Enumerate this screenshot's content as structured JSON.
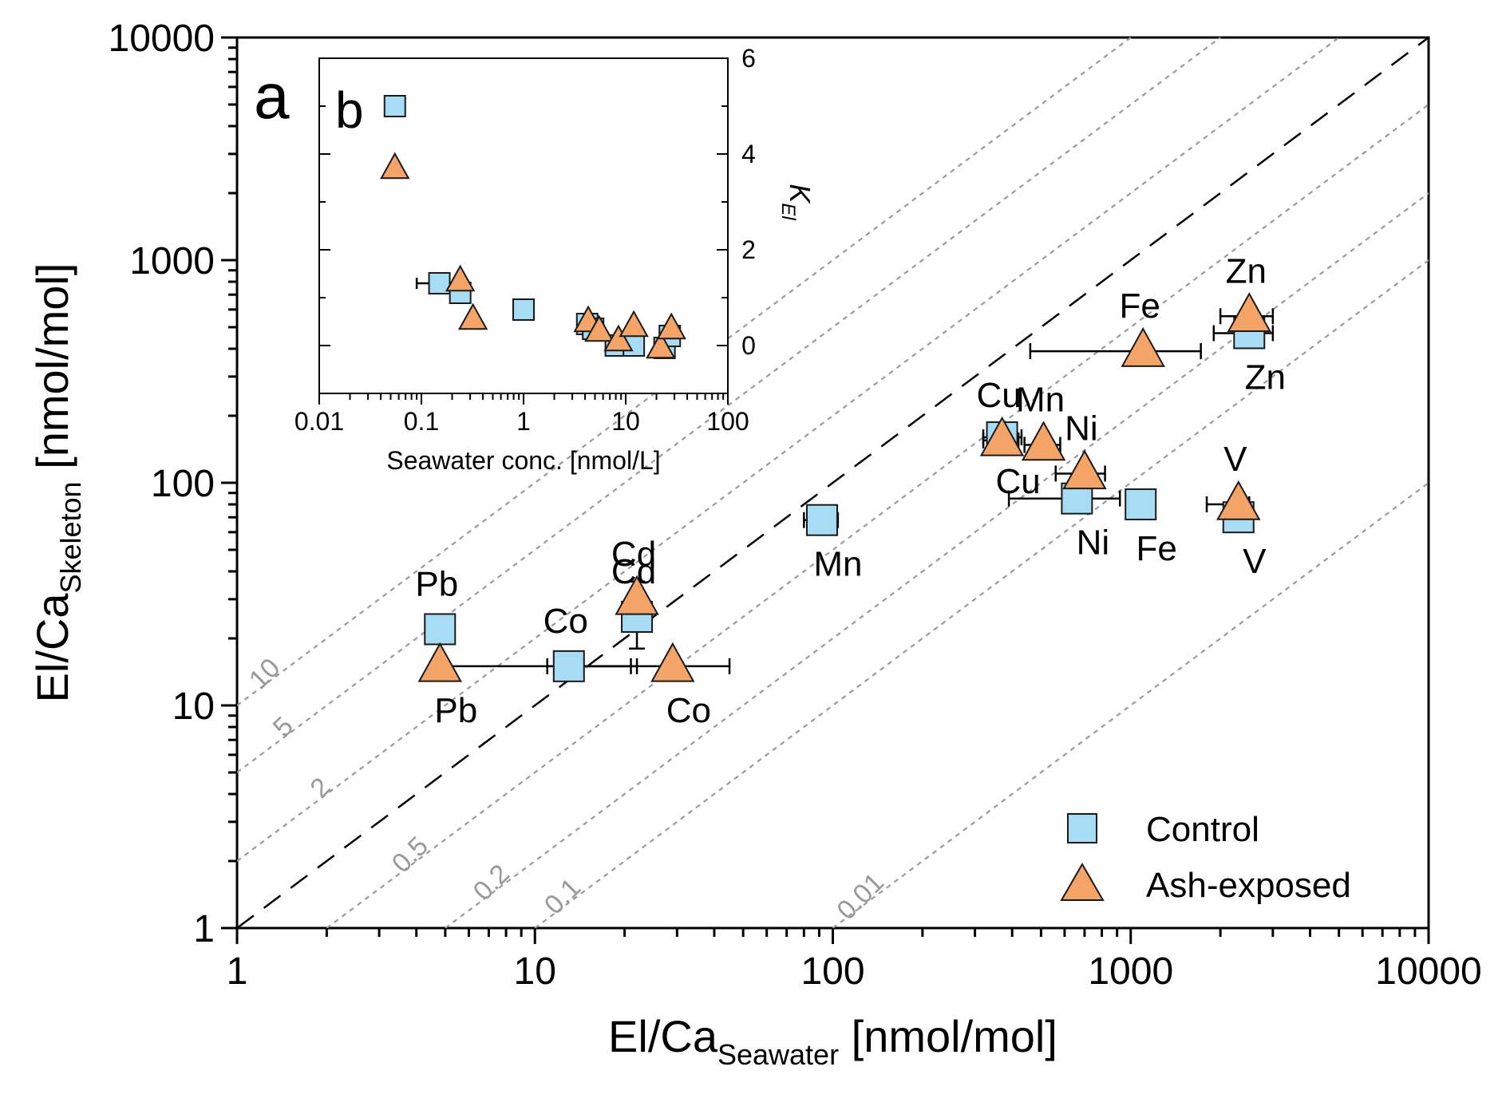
{
  "chart_data": [
    {
      "type": "scatter",
      "panel_label": "a",
      "xlabel": {
        "main": "El/Ca",
        "sub": "Seawater",
        "unit": " [nmol/mol]"
      },
      "ylabel": {
        "main": "El/Ca",
        "sub": "Skeleton",
        "unit": " [nmol/mol]"
      },
      "xscale": "log",
      "yscale": "log",
      "xlim": [
        1,
        10000
      ],
      "ylim": [
        1,
        10000
      ],
      "xticks": [
        1,
        10,
        100,
        1000,
        10000
      ],
      "yticks": [
        1,
        10,
        100,
        1000,
        10000
      ],
      "xtick_labels": [
        "1",
        "10",
        "100",
        "1000",
        "10000"
      ],
      "ytick_labels": [
        "1",
        "10",
        "100",
        "1000",
        "10000"
      ],
      "reference_line": {
        "slope": 1,
        "style": "dashed",
        "color": "#000000"
      },
      "isolines": [
        {
          "k": 10,
          "label": "10",
          "label_at": [
            1.3,
            13
          ]
        },
        {
          "k": 5,
          "label": "5",
          "label_at": [
            1.5,
            7.5
          ]
        },
        {
          "k": 2,
          "label": "2",
          "label_at": [
            2.0,
            4.0
          ]
        },
        {
          "k": 0.5,
          "label": "0.5",
          "label_at": [
            4.0,
            2.0
          ]
        },
        {
          "k": 0.2,
          "label": "0.2",
          "label_at": [
            7.5,
            1.5
          ]
        },
        {
          "k": 0.1,
          "label": "0.1",
          "label_at": [
            13,
            1.3
          ]
        },
        {
          "k": 0.01,
          "label": "0.01",
          "label_at": [
            130,
            1.3
          ]
        }
      ],
      "isoline_color": "#9a9a9a",
      "legend": {
        "position": "bottom-right",
        "entries": [
          {
            "label": "Control",
            "marker": "square"
          },
          {
            "label": "Ash-exposed",
            "marker": "triangle"
          }
        ]
      },
      "series": [
        {
          "name": "Control",
          "marker": "square",
          "color": "#a7dcf5",
          "points": [
            {
              "element": "Pb",
              "x": 4.8,
              "y": 22,
              "xerr": [
                4.4,
                5.2
              ],
              "label_pos": "above"
            },
            {
              "element": "Co",
              "x": 13,
              "y": 15,
              "xerr": [
                11,
                21
              ],
              "label_pos": "above"
            },
            {
              "element": "Cd",
              "x": 22,
              "y": 25,
              "yerr": [
                18,
                30
              ],
              "label_pos": "above"
            },
            {
              "element": "Mn",
              "x": 92,
              "y": 68,
              "xerr": [
                80,
                104
              ],
              "label_pos": "below"
            },
            {
              "element": "Cu",
              "x": 370,
              "y": 160,
              "xerr": [
                320,
                430
              ],
              "label_pos": "below"
            },
            {
              "element": "Ni",
              "x": 660,
              "y": 85,
              "xerr": [
                390,
                920
              ],
              "label_pos": "below"
            },
            {
              "element": "Fe",
              "x": 1080,
              "y": 80,
              "label_pos": "below"
            },
            {
              "element": "V",
              "x": 2300,
              "y": 70,
              "label_pos": "below"
            },
            {
              "element": "Zn",
              "x": 2500,
              "y": 470,
              "xerr": [
                1900,
                3000
              ],
              "label_pos": "below"
            }
          ]
        },
        {
          "name": "Ash-exposed",
          "marker": "triangle",
          "color": "#f4a466",
          "points": [
            {
              "element": "Pb",
              "x": 4.8,
              "y": 15,
              "xerr": [
                4.8,
                22
              ],
              "label_pos": "below"
            },
            {
              "element": "Co",
              "x": 29,
              "y": 15,
              "xerr": [
                14,
                45
              ],
              "label_pos": "below"
            },
            {
              "element": "Cd",
              "x": 22,
              "y": 30,
              "yerr": [
                24,
                36
              ],
              "label_pos": "above"
            },
            {
              "element": "Cu",
              "x": 370,
              "y": 155,
              "xerr": [
                320,
                420
              ],
              "label_pos": "above"
            },
            {
              "element": "Mn",
              "x": 510,
              "y": 148,
              "xerr": [
                440,
                580
              ],
              "label_pos": "above"
            },
            {
              "element": "Ni",
              "x": 700,
              "y": 110,
              "xerr": [
                560,
                820
              ],
              "label_pos": "above"
            },
            {
              "element": "Fe",
              "x": 1100,
              "y": 390,
              "xerr": [
                460,
                1720
              ],
              "label_pos": "above"
            },
            {
              "element": "V",
              "x": 2300,
              "y": 80,
              "xerr": [
                1800,
                2500
              ],
              "label_pos": "above"
            },
            {
              "element": "Zn",
              "x": 2500,
              "y": 560,
              "xerr": [
                2000,
                3000
              ],
              "label_pos": "above"
            }
          ]
        }
      ]
    },
    {
      "type": "scatter",
      "panel_label": "b",
      "inset": true,
      "xlabel": "Seawater conc. [nmol/L]",
      "ylabel": {
        "main": "K",
        "sub": "El"
      },
      "xscale": "log",
      "xlim": [
        0.01,
        100
      ],
      "ylim": [
        -1,
        6
      ],
      "xticks": [
        0.01,
        0.1,
        1,
        10,
        100
      ],
      "xtick_labels": [
        "0.01",
        "0.1",
        "1",
        "10",
        "100"
      ],
      "yticks": [
        0,
        2,
        4,
        6
      ],
      "ytick_labels": [
        "0",
        "2",
        "4",
        "6"
      ],
      "yaxis_side": "right",
      "series": [
        {
          "name": "Control",
          "marker": "square",
          "color": "#a7dcf5",
          "points": [
            {
              "x": 0.055,
              "y": 5.0
            },
            {
              "x": 0.15,
              "y": 1.3,
              "xerr": [
                0.09,
                0.18
              ]
            },
            {
              "x": 0.24,
              "y": 1.1
            },
            {
              "x": 1.0,
              "y": 0.75
            },
            {
              "x": 4.2,
              "y": 0.45
            },
            {
              "x": 4.8,
              "y": 0.35
            },
            {
              "x": 8.0,
              "y": 0.0
            },
            {
              "x": 12,
              "y": 0.0
            },
            {
              "x": 24,
              "y": -0.05
            },
            {
              "x": 27,
              "y": 0.2
            }
          ]
        },
        {
          "name": "Ash-exposed",
          "marker": "triangle",
          "color": "#f4a466",
          "points": [
            {
              "x": 0.055,
              "y": 3.7
            },
            {
              "x": 0.24,
              "y": 1.35
            },
            {
              "x": 0.32,
              "y": 0.55
            },
            {
              "x": 4.3,
              "y": 0.5
            },
            {
              "x": 5.5,
              "y": 0.3
            },
            {
              "x": 8.5,
              "y": 0.1
            },
            {
              "x": 12,
              "y": 0.4
            },
            {
              "x": 22,
              "y": -0.05
            },
            {
              "x": 28,
              "y": 0.35
            }
          ]
        }
      ]
    }
  ]
}
